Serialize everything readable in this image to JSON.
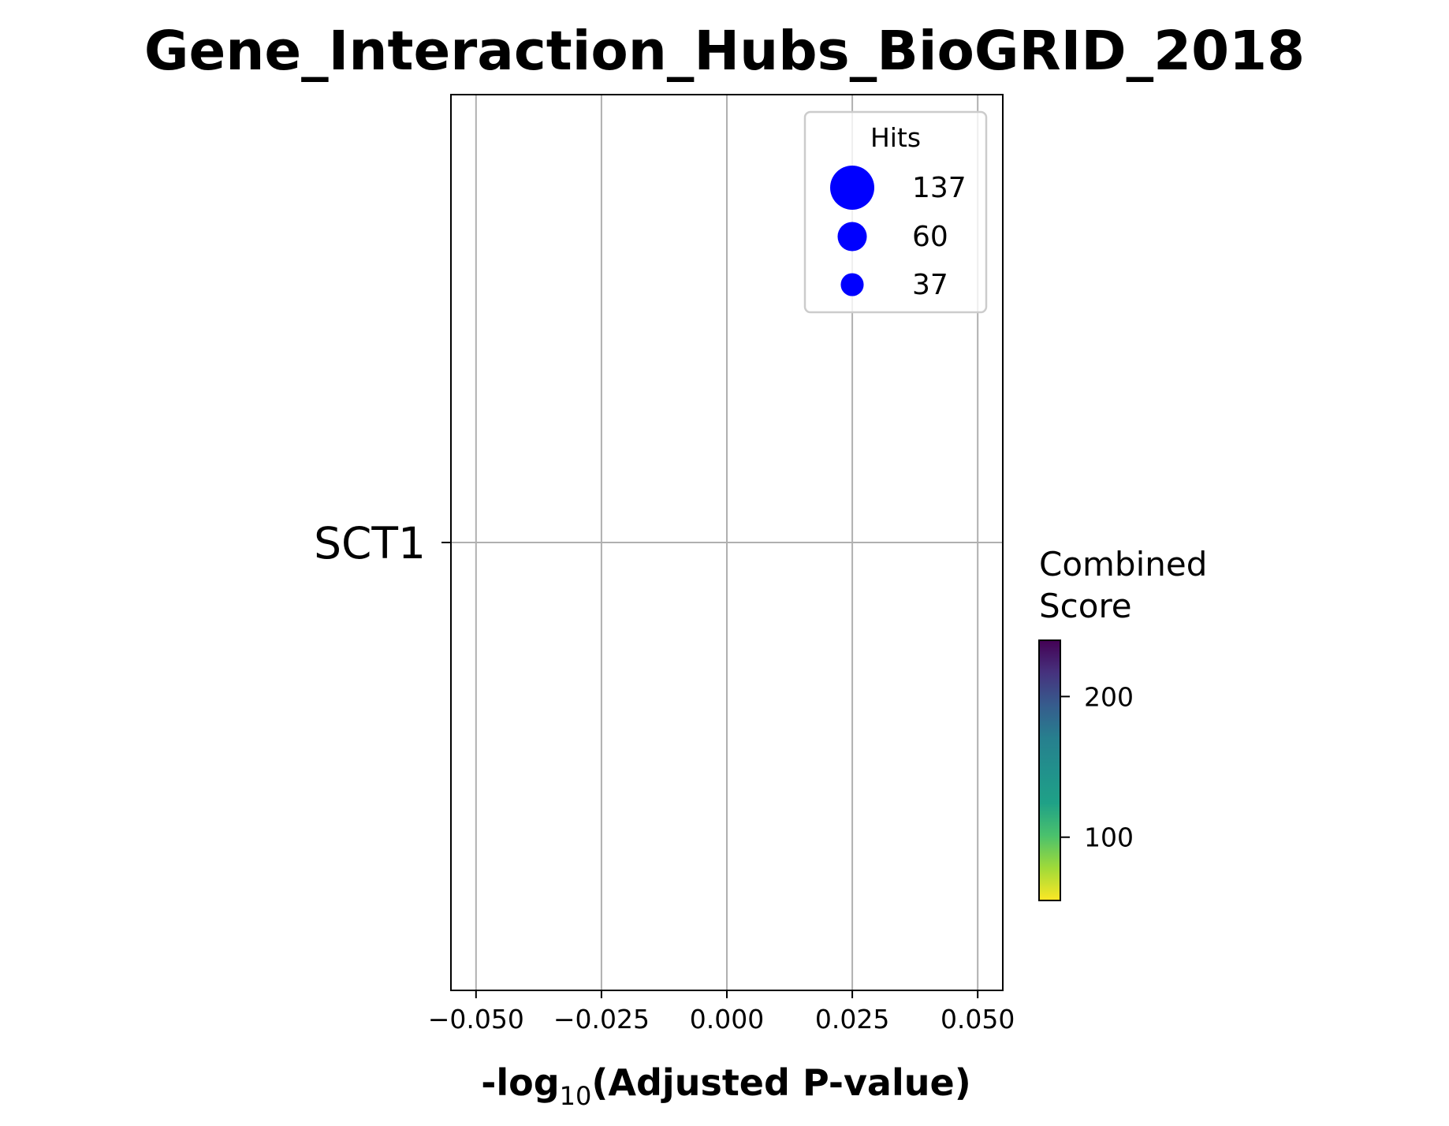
{
  "chart_data": {
    "type": "scatter",
    "title": "Gene_Interaction_Hubs_BioGRID_2018",
    "xlabel_prefix": "-log",
    "xlabel_subscript": "10",
    "xlabel_suffix": "(Adjusted P-value)",
    "ylabel": "",
    "xlim": [
      -0.055,
      0.055
    ],
    "x_ticks": [
      {
        "value": -0.05,
        "label": "−0.050"
      },
      {
        "value": -0.025,
        "label": "−0.025"
      },
      {
        "value": 0.0,
        "label": "0.000"
      },
      {
        "value": 0.025,
        "label": "0.025"
      },
      {
        "value": 0.05,
        "label": "0.050"
      }
    ],
    "categories": [
      "SCT1"
    ],
    "grid": true,
    "points": [],
    "legend": {
      "title": "Hits",
      "placement": "top-right",
      "color": "#0000ff",
      "entries": [
        {
          "label": "137",
          "value": 137
        },
        {
          "label": "60",
          "value": 60
        },
        {
          "label": "37",
          "value": 37
        }
      ]
    },
    "colorbar": {
      "title_line1": "Combined",
      "title_line2": "Score",
      "colormap": "viridis_r",
      "range": [
        55,
        240
      ],
      "ticks": [
        {
          "value": 100,
          "label": "100"
        },
        {
          "value": 200,
          "label": "200"
        }
      ]
    }
  }
}
